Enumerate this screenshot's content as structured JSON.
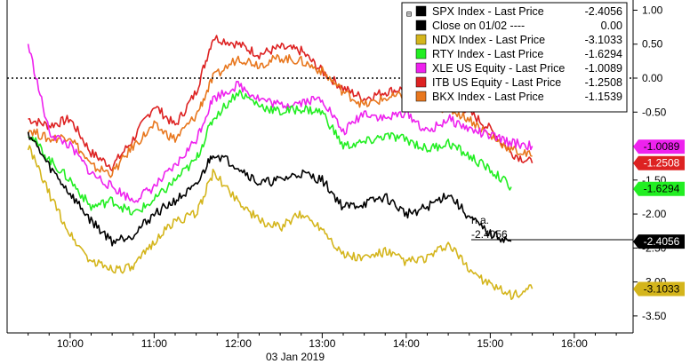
{
  "chart_data": {
    "type": "line",
    "x_label": "03 Jan 2019",
    "x_ticks": [
      "10:00",
      "11:00",
      "12:00",
      "13:00",
      "14:00",
      "15:00",
      "16:00"
    ],
    "y_ticks": [
      "1.00",
      "0.50",
      "0.00",
      "-0.50",
      "-1.00",
      "-1.50",
      "-2.00",
      "-2.50",
      "-3.00",
      "-3.50"
    ],
    "ylim": [
      -3.75,
      1.15
    ],
    "reference_line": {
      "label": "Close on 01/02 ----",
      "value": "0.00",
      "y": 0.0
    },
    "annotation": {
      "na_label": "n.a.",
      "value_label": "-2.4056"
    },
    "legend": [
      {
        "name": "SPX Index - Last Price",
        "value": "-2.4056",
        "color": "#000000"
      },
      {
        "name": "Close on 01/02 ----",
        "value": "0.00",
        "color": "#000000"
      },
      {
        "name": "NDX Index - Last Price",
        "value": "-3.1033",
        "color": "#d4b51c"
      },
      {
        "name": "RTY Index - Last Price",
        "value": "-1.6294",
        "color": "#22ee22"
      },
      {
        "name": "XLE US Equity - Last Price",
        "value": "-1.0089",
        "color": "#ee22ee"
      },
      {
        "name": "ITB US Equity - Last Price",
        "value": "-1.2508",
        "color": "#dd2222"
      },
      {
        "name": "BKX Index - Last Price",
        "value": "-1.1539",
        "color": "#e8771e"
      }
    ],
    "value_tags": [
      {
        "label": "-1.0089",
        "value": -1.0089,
        "bg": "#ee22ee",
        "fg": "#000000"
      },
      {
        "label": "-1.2508",
        "value": -1.2508,
        "bg": "#dd2222",
        "fg": "#ffffff"
      },
      {
        "label": "-1.6294",
        "value": -1.6294,
        "bg": "#22ee22",
        "fg": "#000000"
      },
      {
        "label": "-2.4056",
        "value": -2.4056,
        "bg": "#000000",
        "fg": "#ffffff"
      },
      {
        "label": "-3.1033",
        "value": -3.1033,
        "bg": "#d4b51c",
        "fg": "#000000"
      }
    ],
    "series": [
      {
        "name": "ITB US Equity - Last Price",
        "color": "#dd2222",
        "x": [
          9.5,
          9.75,
          10.0,
          10.25,
          10.5,
          10.75,
          11.0,
          11.25,
          11.5,
          11.7,
          12.0,
          12.25,
          12.5,
          12.75,
          13.0,
          13.25,
          13.5,
          13.75,
          14.0,
          14.25,
          14.5,
          14.75,
          15.0,
          15.25,
          15.5
        ],
        "y": [
          -0.6,
          -0.7,
          -0.6,
          -1.1,
          -1.3,
          -0.9,
          -0.4,
          -0.7,
          -0.2,
          0.6,
          0.5,
          0.35,
          0.45,
          0.4,
          0.1,
          -0.15,
          -0.3,
          -0.2,
          -0.15,
          -0.35,
          -0.3,
          -0.5,
          -0.75,
          -1.1,
          -1.25
        ]
      },
      {
        "name": "BKX Index - Last Price",
        "color": "#e8771e",
        "x": [
          9.5,
          9.75,
          10.0,
          10.25,
          10.5,
          10.75,
          11.0,
          11.25,
          11.5,
          11.7,
          12.0,
          12.25,
          12.5,
          12.75,
          13.0,
          13.25,
          13.5,
          13.75,
          14.0,
          14.25,
          14.5,
          14.75,
          15.0,
          15.25,
          15.5
        ],
        "y": [
          -0.75,
          -0.9,
          -0.85,
          -1.3,
          -1.4,
          -1.0,
          -0.7,
          -0.9,
          -0.55,
          0.0,
          0.3,
          0.2,
          0.3,
          0.25,
          0.1,
          -0.2,
          -0.4,
          -0.3,
          -0.25,
          -0.4,
          -0.45,
          -0.6,
          -0.85,
          -1.05,
          -1.15
        ]
      },
      {
        "name": "XLE US Equity - Last Price",
        "color": "#ee22ee",
        "x": [
          9.5,
          9.75,
          10.0,
          10.25,
          10.5,
          10.75,
          11.0,
          11.25,
          11.5,
          11.7,
          12.0,
          12.25,
          12.5,
          12.75,
          13.0,
          13.25,
          13.5,
          13.75,
          14.0,
          14.25,
          14.5,
          14.75,
          15.0,
          15.25,
          15.5
        ],
        "y": [
          0.5,
          -0.8,
          -1.0,
          -1.4,
          -1.6,
          -1.8,
          -1.6,
          -1.3,
          -0.9,
          -0.3,
          -0.1,
          -0.3,
          -0.4,
          -0.35,
          -0.3,
          -0.8,
          -0.5,
          -0.6,
          -0.5,
          -0.8,
          -0.6,
          -0.75,
          -0.85,
          -0.95,
          -1.0
        ]
      },
      {
        "name": "RTY Index - Last Price",
        "color": "#22ee22",
        "x": [
          9.5,
          9.75,
          10.0,
          10.25,
          10.5,
          10.75,
          11.0,
          11.25,
          11.5,
          11.7,
          12.0,
          12.25,
          12.5,
          12.75,
          13.0,
          13.25,
          13.5,
          13.75,
          14.0,
          14.25,
          14.5,
          14.75,
          15.0,
          15.25
        ],
        "y": [
          -0.8,
          -1.2,
          -1.5,
          -1.9,
          -1.8,
          -2.0,
          -1.8,
          -1.5,
          -1.2,
          -0.6,
          -0.2,
          -0.4,
          -0.5,
          -0.45,
          -0.5,
          -1.0,
          -0.95,
          -0.85,
          -0.9,
          -1.05,
          -0.95,
          -1.15,
          -1.35,
          -1.6
        ]
      },
      {
        "name": "SPX Index - Last Price",
        "color": "#000000",
        "x": [
          9.5,
          9.75,
          10.0,
          10.25,
          10.5,
          10.75,
          11.0,
          11.25,
          11.5,
          11.7,
          12.0,
          12.25,
          12.5,
          12.75,
          13.0,
          13.25,
          13.5,
          13.75,
          14.0,
          14.25,
          14.5,
          14.75,
          15.0,
          15.25
        ],
        "y": [
          -0.8,
          -1.3,
          -1.7,
          -2.1,
          -2.4,
          -2.3,
          -2.0,
          -1.8,
          -1.6,
          -1.1,
          -1.3,
          -1.55,
          -1.5,
          -1.4,
          -1.5,
          -1.9,
          -1.85,
          -1.75,
          -2.0,
          -1.9,
          -1.7,
          -2.05,
          -2.3,
          -2.4
        ]
      },
      {
        "name": "NDX Index - Last Price",
        "color": "#d4b51c",
        "x": [
          9.5,
          9.75,
          10.0,
          10.25,
          10.5,
          10.75,
          11.0,
          11.25,
          11.5,
          11.7,
          12.0,
          12.25,
          12.5,
          12.75,
          13.0,
          13.25,
          13.5,
          13.75,
          14.0,
          14.25,
          14.5,
          14.75,
          15.0,
          15.25,
          15.5
        ],
        "y": [
          -1.0,
          -1.7,
          -2.3,
          -2.7,
          -2.8,
          -2.8,
          -2.4,
          -2.1,
          -2.0,
          -1.4,
          -1.8,
          -2.1,
          -2.2,
          -2.0,
          -2.2,
          -2.6,
          -2.65,
          -2.55,
          -2.7,
          -2.65,
          -2.45,
          -2.8,
          -3.05,
          -3.2,
          -3.1
        ]
      }
    ]
  }
}
